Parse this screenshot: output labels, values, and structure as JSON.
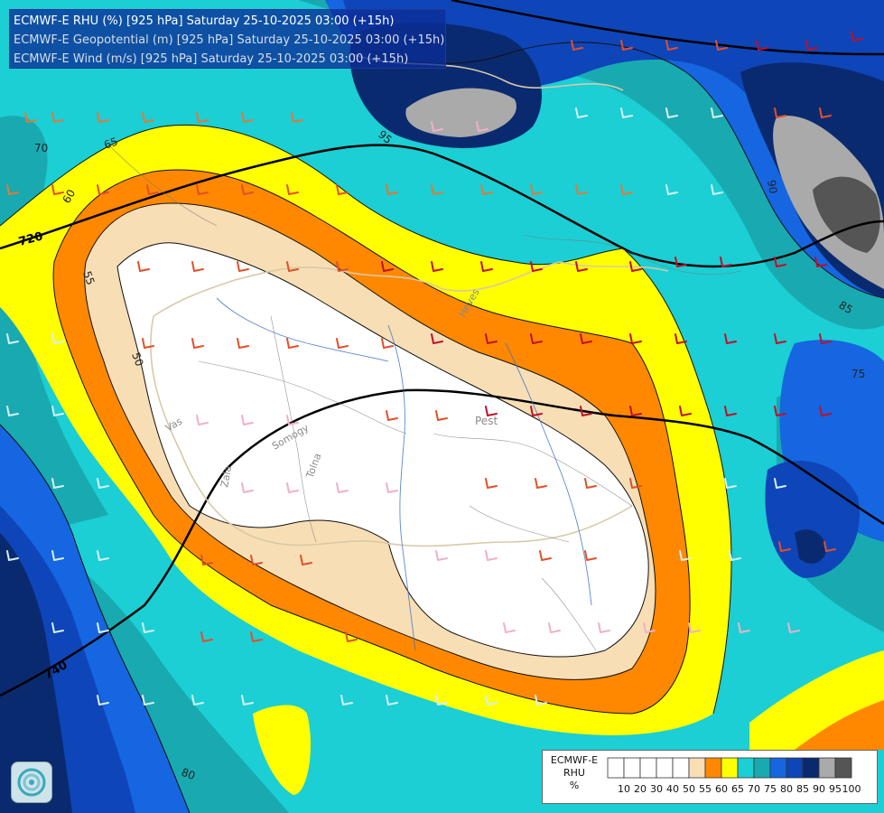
{
  "title_lines": [
    "ECMWF-E RHU (%) [925 hPa] Saturday 25-10-2025 03:00 (+15h)",
    "ECMWF-E Geopotential (m) [925 hPa] Saturday 25-10-2025 03:00 (+15h)",
    "ECMWF-E Wind (m/s) [925 hPa] Saturday 25-10-2025 03:00 (+15h)"
  ],
  "legend": {
    "title_lines": [
      "ECMWF-E",
      "RHU",
      "%"
    ],
    "bins": [
      {
        "label": "10",
        "color": "#ffffff"
      },
      {
        "label": "20",
        "color": "#ffffff"
      },
      {
        "label": "30",
        "color": "#ffffff"
      },
      {
        "label": "40",
        "color": "#ffffff"
      },
      {
        "label": "50",
        "color": "#ffffff"
      },
      {
        "label": "55",
        "color": "#f7deb5"
      },
      {
        "label": "60",
        "color": "#ff8800"
      },
      {
        "label": "65",
        "color": "#ffff00"
      },
      {
        "label": "70",
        "color": "#1bcfd4"
      },
      {
        "label": "75",
        "color": "#18aab0"
      },
      {
        "label": "80",
        "color": "#1566e0"
      },
      {
        "label": "85",
        "color": "#0e45b8"
      },
      {
        "label": "90",
        "color": "#0a2a70"
      },
      {
        "label": "95",
        "color": "#aaaaaa"
      },
      {
        "label": "100",
        "color": "#555555"
      }
    ]
  },
  "rhu_contour_labels": [
    "50",
    "55",
    "60",
    "65",
    "70",
    "75",
    "80",
    "85",
    "90",
    "95"
  ],
  "geopotential_labels": [
    "720",
    "740"
  ],
  "place_labels": [
    "Pest",
    "Heves",
    "Vas",
    "Somogy",
    "Tolna",
    "Zala"
  ],
  "colors": {
    "rh_50": "#ffffff",
    "rh_55": "#f7deb5",
    "rh_60": "#ff8800",
    "rh_65": "#ffff00",
    "rh_70": "#1bcfd4",
    "rh_75": "#18aab0",
    "rh_80": "#1566e0",
    "rh_85": "#0e45b8",
    "rh_90": "#0a2a70",
    "rh_95": "#aaaaaa",
    "rh_100": "#555555"
  }
}
